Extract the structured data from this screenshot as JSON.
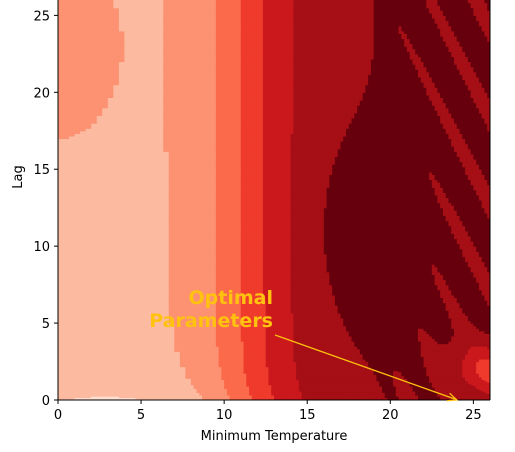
{
  "chart_data": {
    "type": "heatmap",
    "subtype": "filled-contour",
    "colormap": "Reds",
    "title": "",
    "xlabel": "Minimum Temperature",
    "ylabel": "Lag",
    "xlim": [
      0,
      26
    ],
    "ylim": [
      0,
      26
    ],
    "x_ticks": [
      0,
      5,
      10,
      15,
      20,
      25
    ],
    "y_ticks": [
      0,
      5,
      10,
      15,
      20,
      25
    ],
    "grid": false,
    "legend": "none",
    "x": [
      0,
      2,
      4,
      6,
      8,
      9,
      10,
      11,
      12,
      13,
      14,
      15,
      16,
      17,
      18,
      19,
      20,
      21,
      22,
      23,
      24,
      25,
      26
    ],
    "y": [
      0,
      0.5,
      1,
      1.5,
      2,
      3,
      4,
      5,
      6,
      7,
      8,
      9,
      10,
      11,
      12,
      13,
      14,
      15,
      16,
      17,
      18,
      19,
      20,
      21,
      22,
      23,
      24,
      25,
      26
    ],
    "levels": 9,
    "level_colors": [
      "#fff5f0",
      "#fee0d2",
      "#fcbba1",
      "#fc9272",
      "#fb6a4a",
      "#ef3b2c",
      "#cb181d",
      "#a50f15",
      "#67000d"
    ],
    "optimum": {
      "x": 24,
      "y": 0
    },
    "annotation": {
      "lines": [
        "Optimal",
        "Parameters"
      ],
      "color": "#ffc20e",
      "points_to": [
        24,
        0
      ]
    }
  }
}
